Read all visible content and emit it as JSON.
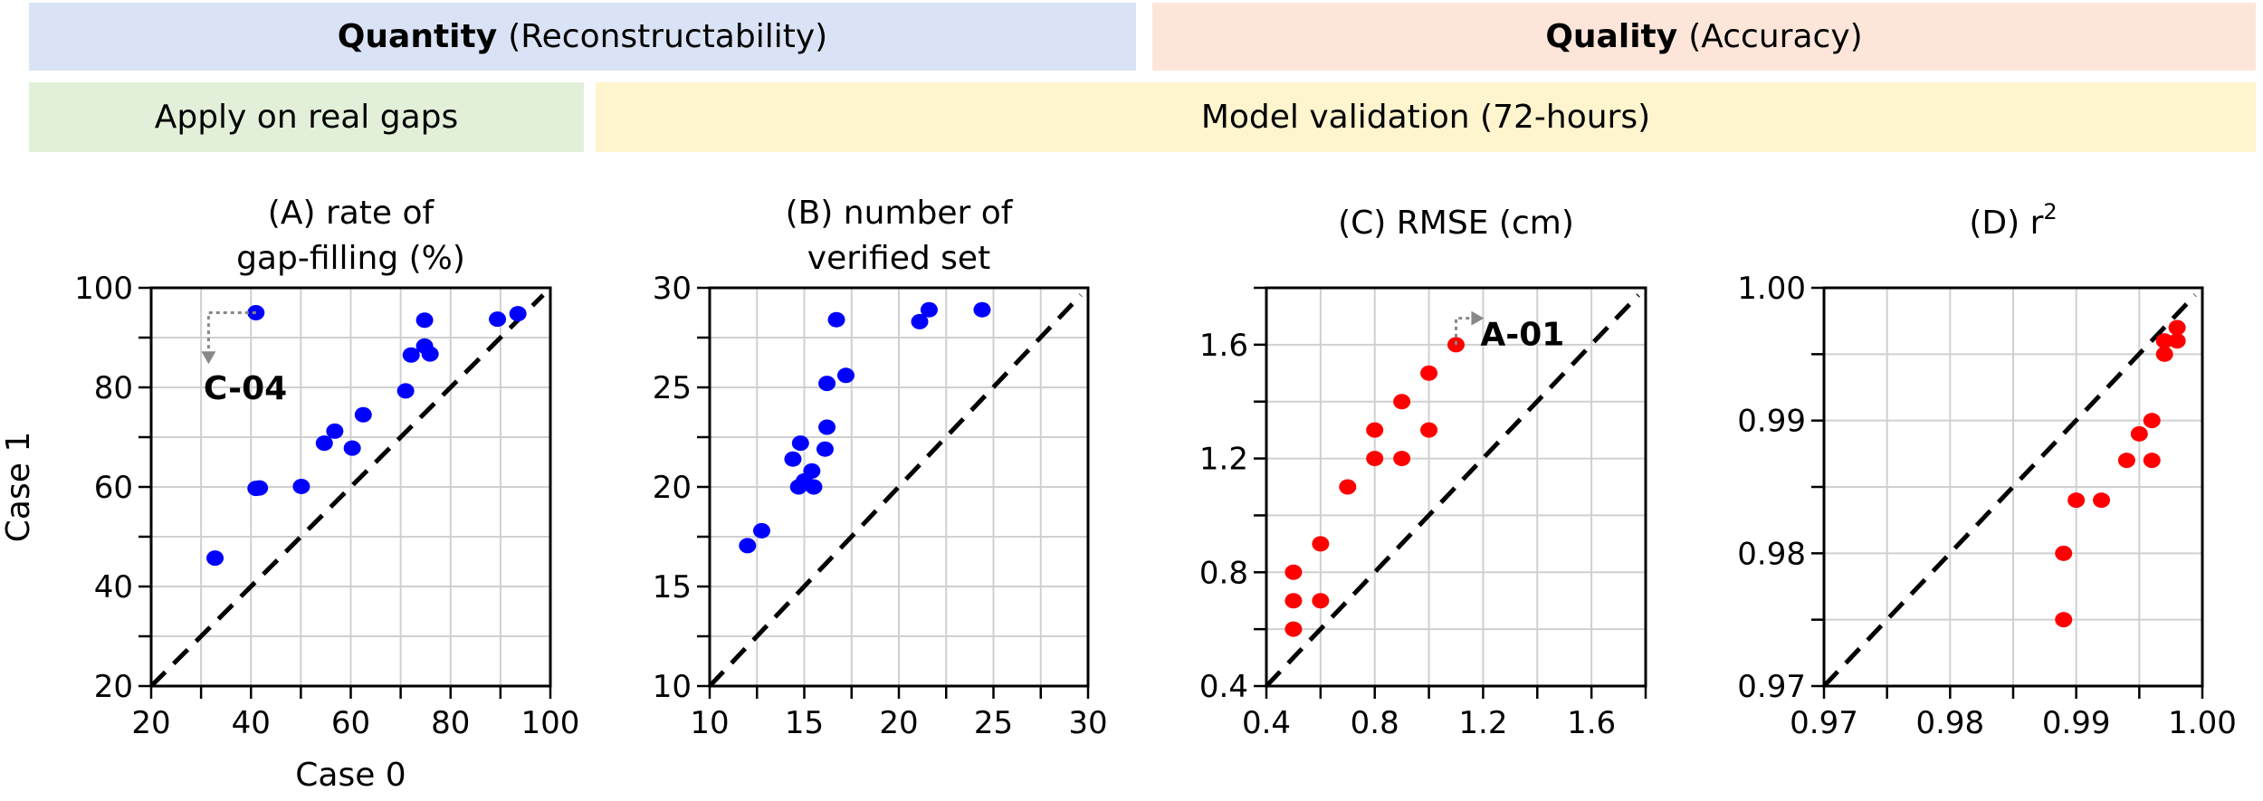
{
  "headers": {
    "quantity": {
      "bold": "Quantity",
      "rest": "(Reconstructability)",
      "color": "#dae3f5"
    },
    "quality": {
      "bold": "Quality",
      "rest": "(Accuracy)",
      "color": "#fde6d9"
    },
    "real_gaps": {
      "text": "Apply on real gaps",
      "color": "#e2f0d9"
    },
    "validation": {
      "text": "Model validation (72-hours)",
      "color": "#fef4cd"
    }
  },
  "chart_data": [
    {
      "type": "scatter",
      "title": [
        "(A) rate of",
        "gap-filling (%)"
      ],
      "xlabel": "Case 0",
      "ylabel": "Case 1",
      "xlim": [
        20,
        100
      ],
      "ylim": [
        20,
        100
      ],
      "ticks": [
        20,
        40,
        60,
        80,
        100
      ],
      "tick_labels": [
        "20",
        "40",
        "60",
        "80",
        "100"
      ],
      "grid_step": 10,
      "color": "#0000ff",
      "identity_line": true,
      "points": [
        [
          41,
          95
        ],
        [
          74.8,
          93.5
        ],
        [
          89.4,
          93.7
        ],
        [
          93.5,
          94.8
        ],
        [
          72.1,
          86.5
        ],
        [
          74.8,
          88.3
        ],
        [
          75.9,
          86.7
        ],
        [
          71,
          79.3
        ],
        [
          62.5,
          74.5
        ],
        [
          56.8,
          71.2
        ],
        [
          54.7,
          68.8
        ],
        [
          60.3,
          67.8
        ],
        [
          41,
          59.7
        ],
        [
          41.7,
          59.8
        ],
        [
          50.1,
          60.1
        ],
        [
          32.8,
          45.7
        ]
      ],
      "annotation": {
        "text": "C-04",
        "point": [
          41,
          95
        ],
        "label_at": [
          30.5,
          80
        ],
        "arrow": [
          [
            31.5,
            95
          ],
          [
            31.5,
            86.5
          ]
        ]
      }
    },
    {
      "type": "scatter",
      "title": [
        "(B) number of",
        "verified set"
      ],
      "xlabel": "",
      "ylabel": "",
      "xlim": [
        10,
        30
      ],
      "ylim": [
        10,
        30
      ],
      "ticks": [
        10,
        15,
        20,
        25,
        30
      ],
      "tick_labels": [
        "10",
        "15",
        "20",
        "25",
        "30"
      ],
      "grid_step": 2.5,
      "color": "#0000ff",
      "identity_line": true,
      "points": [
        [
          16.7,
          28.4
        ],
        [
          21.1,
          28.3
        ],
        [
          21.6,
          28.9
        ],
        [
          24.4,
          28.9
        ],
        [
          17.2,
          25.6
        ],
        [
          16.2,
          25.2
        ],
        [
          16.2,
          23.0
        ],
        [
          16.1,
          21.9
        ],
        [
          14.8,
          22.2
        ],
        [
          14.4,
          21.4
        ],
        [
          15.4,
          20.8
        ],
        [
          14.7,
          20.0
        ],
        [
          15.0,
          20.3
        ],
        [
          15.5,
          20.0
        ],
        [
          12.75,
          17.8
        ],
        [
          12.0,
          17.05
        ]
      ]
    },
    {
      "type": "scatter",
      "title": [
        "(C) RMSE (cm)"
      ],
      "xlabel": "",
      "ylabel": "",
      "xlim": [
        0.4,
        1.8
      ],
      "ylim": [
        0.4,
        1.8
      ],
      "ticks": [
        0.4,
        0.8,
        1.2,
        1.6
      ],
      "tick_labels": [
        "0.4",
        "0.8",
        "1.2",
        "1.6"
      ],
      "grid_step": 0.2,
      "color": "#ff0000",
      "identity_line": true,
      "points": [
        [
          0.5,
          0.8
        ],
        [
          0.5,
          0.7
        ],
        [
          0.5,
          0.6
        ],
        [
          0.6,
          0.9
        ],
        [
          0.6,
          0.7
        ],
        [
          0.7,
          1.1
        ],
        [
          0.8,
          1.2
        ],
        [
          0.8,
          1.3
        ],
        [
          0.9,
          1.2
        ],
        [
          0.9,
          1.4
        ],
        [
          1.0,
          1.3
        ],
        [
          1.0,
          1.5
        ],
        [
          1.1,
          1.6
        ]
      ],
      "annotation": {
        "text": "A-01",
        "point": [
          1.1,
          1.6
        ],
        "label_at": [
          1.19,
          1.64
        ],
        "arrow": [
          [
            1.1,
            1.693
          ],
          [
            1.17,
            1.693
          ]
        ]
      }
    },
    {
      "type": "scatter",
      "title": [
        "(D) r"
      ],
      "title_sup": "2",
      "xlabel": "",
      "ylabel": "",
      "xlim": [
        0.97,
        1.0
      ],
      "ylim": [
        0.97,
        1.0
      ],
      "ticks": [
        0.97,
        0.98,
        0.99,
        1.0
      ],
      "tick_labels": [
        "0.97",
        "0.98",
        "0.99",
        "1.00"
      ],
      "grid_step": 0.005,
      "color": "#ff0000",
      "identity_line": true,
      "points": [
        [
          0.989,
          0.975
        ],
        [
          0.989,
          0.98
        ],
        [
          0.99,
          0.984
        ],
        [
          0.992,
          0.984
        ],
        [
          0.994,
          0.987
        ],
        [
          0.996,
          0.987
        ],
        [
          0.995,
          0.989
        ],
        [
          0.996,
          0.99
        ],
        [
          0.997,
          0.995
        ],
        [
          0.997,
          0.996
        ],
        [
          0.998,
          0.997
        ],
        [
          0.998,
          0.996
        ]
      ]
    }
  ]
}
